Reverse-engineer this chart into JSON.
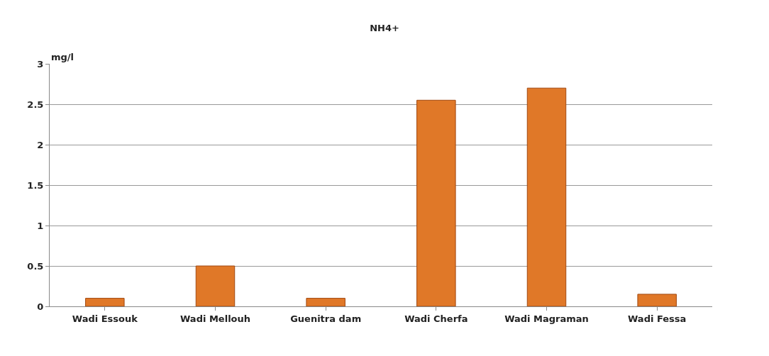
{
  "chart_data": {
    "type": "bar",
    "title": "NH4+",
    "ylabel": "mg/l",
    "categories": [
      "Wadi Essouk",
      "Wadi Mellouh",
      "Guenitra dam",
      "Wadi Cherfa",
      "Wadi Magraman",
      "Wadi Fessa"
    ],
    "values": [
      0.1,
      0.5,
      0.1,
      2.55,
      2.7,
      0.15
    ],
    "color": "#e07828",
    "ylim": [
      0,
      3
    ],
    "yticks": [
      0,
      0.5,
      1,
      1.5,
      2,
      2.5,
      3
    ],
    "grid": "y"
  }
}
